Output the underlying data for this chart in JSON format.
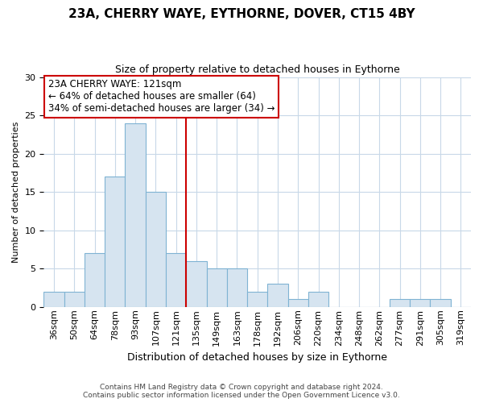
{
  "title": "23A, CHERRY WAYE, EYTHORNE, DOVER, CT15 4BY",
  "subtitle": "Size of property relative to detached houses in Eythorne",
  "xlabel": "Distribution of detached houses by size in Eythorne",
  "ylabel": "Number of detached properties",
  "bar_labels": [
    "36sqm",
    "50sqm",
    "64sqm",
    "78sqm",
    "93sqm",
    "107sqm",
    "121sqm",
    "135sqm",
    "149sqm",
    "163sqm",
    "178sqm",
    "192sqm",
    "206sqm",
    "220sqm",
    "234sqm",
    "248sqm",
    "262sqm",
    "277sqm",
    "291sqm",
    "305sqm",
    "319sqm"
  ],
  "bar_values": [
    2,
    2,
    7,
    17,
    24,
    15,
    7,
    6,
    5,
    5,
    2,
    3,
    1,
    2,
    0,
    0,
    0,
    1,
    1,
    1,
    0
  ],
  "bar_color": "#d6e4f0",
  "bar_edge_color": "#7fb3d3",
  "reference_line_x_label": "121sqm",
  "reference_line_color": "#cc0000",
  "annotation_title": "23A CHERRY WAYE: 121sqm",
  "annotation_line1": "← 64% of detached houses are smaller (64)",
  "annotation_line2": "34% of semi-detached houses are larger (34) →",
  "annotation_box_color": "#ffffff",
  "annotation_box_edge_color": "#cc0000",
  "ylim": [
    0,
    30
  ],
  "yticks": [
    0,
    5,
    10,
    15,
    20,
    25,
    30
  ],
  "footer_line1": "Contains HM Land Registry data © Crown copyright and database right 2024.",
  "footer_line2": "Contains public sector information licensed under the Open Government Licence v3.0.",
  "bg_color": "#ffffff",
  "grid_color": "#c8d8e8",
  "title_fontsize": 11,
  "subtitle_fontsize": 9,
  "ylabel_fontsize": 8,
  "xlabel_fontsize": 9,
  "tick_fontsize": 8,
  "annotation_fontsize": 8.5,
  "footer_fontsize": 6.5
}
